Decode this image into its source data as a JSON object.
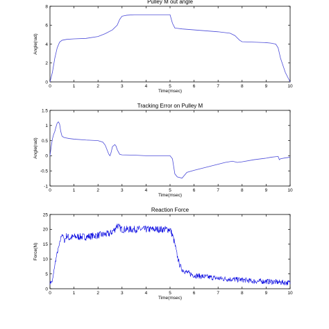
{
  "chart_data": [
    {
      "type": "line",
      "title": "Pulley M out angle",
      "xlabel": "Time(msec)",
      "ylabel": "Angle(rad)",
      "xlim": [
        0,
        10
      ],
      "ylim": [
        0,
        8
      ],
      "xticks": [
        "0",
        "1",
        "2",
        "3",
        "4",
        "5",
        "6",
        "7",
        "8",
        "9",
        "10"
      ],
      "yticks": [
        "0",
        "2",
        "4",
        "6",
        "8"
      ],
      "grid": false,
      "series": [
        {
          "color": "#4a4ad8",
          "x": [
            0,
            0.1,
            0.2,
            0.3,
            0.4,
            0.5,
            0.7,
            1.0,
            1.5,
            2.0,
            2.3,
            2.6,
            2.8,
            2.9,
            3.0,
            3.1,
            3.2,
            3.5,
            4.0,
            4.5,
            5.0,
            5.1,
            5.2,
            5.5,
            6.0,
            6.5,
            7.0,
            7.5,
            7.7,
            7.9,
            8.0,
            8.5,
            9.0,
            9.2,
            9.4,
            9.5,
            9.6,
            9.8,
            10.0
          ],
          "y": [
            0,
            1.0,
            2.5,
            3.6,
            4.2,
            4.4,
            4.5,
            4.55,
            4.6,
            4.8,
            5.1,
            5.5,
            6.0,
            6.6,
            6.95,
            7.0,
            7.05,
            7.1,
            7.1,
            7.1,
            7.1,
            6.2,
            5.7,
            5.6,
            5.5,
            5.4,
            5.3,
            5.15,
            4.9,
            4.4,
            4.25,
            4.2,
            4.15,
            4.1,
            4.0,
            3.6,
            2.5,
            1.0,
            0
          ]
        }
      ]
    },
    {
      "type": "line",
      "title": "Tracking Error on Pulley M",
      "xlabel": "Time(msec)",
      "ylabel": "Angle(rad)",
      "xlim": [
        0,
        10
      ],
      "ylim": [
        -1,
        1.5
      ],
      "xticks": [
        "0",
        "1",
        "2",
        "3",
        "4",
        "5",
        "6",
        "7",
        "8",
        "9",
        "10"
      ],
      "yticks": [
        "-1",
        "-0.5",
        "0",
        "0.5",
        "1",
        "1.5"
      ],
      "grid": false,
      "series": [
        {
          "color": "#4a4ad8",
          "x": [
            0,
            0.05,
            0.1,
            0.15,
            0.2,
            0.25,
            0.3,
            0.35,
            0.4,
            0.45,
            0.5,
            0.55,
            0.6,
            0.8,
            1.0,
            1.5,
            2.0,
            2.2,
            2.3,
            2.4,
            2.45,
            2.5,
            2.55,
            2.6,
            2.7,
            2.75,
            2.8,
            2.9,
            3.0,
            3.5,
            4.0,
            4.5,
            5.0,
            5.1,
            5.15,
            5.2,
            5.3,
            5.5,
            5.7,
            6.0,
            6.5,
            7.0,
            7.3,
            7.6,
            7.8,
            8.0,
            8.5,
            9.0,
            9.2,
            9.4,
            9.5,
            9.55,
            9.6,
            9.8,
            10.0
          ],
          "y": [
            0.0,
            0.3,
            0.55,
            0.7,
            0.8,
            0.95,
            1.08,
            1.12,
            1.05,
            0.8,
            0.65,
            0.62,
            0.6,
            0.57,
            0.55,
            0.52,
            0.5,
            0.45,
            0.35,
            0.15,
            0.05,
            0.0,
            0.12,
            0.3,
            0.37,
            0.32,
            0.2,
            0.05,
            0.03,
            0.02,
            0.0,
            0.0,
            0.0,
            -0.1,
            -0.35,
            -0.6,
            -0.7,
            -0.74,
            -0.55,
            -0.48,
            -0.38,
            -0.28,
            -0.22,
            -0.18,
            -0.22,
            -0.2,
            -0.13,
            -0.08,
            -0.05,
            -0.03,
            -0.02,
            -0.13,
            -0.1,
            -0.07,
            -0.05
          ]
        }
      ]
    },
    {
      "type": "line",
      "title": "Reaction Force",
      "xlabel": "Time(msec)",
      "ylabel": "Force(N)",
      "xlim": [
        0,
        10
      ],
      "ylim": [
        0,
        25
      ],
      "xticks": [
        "0",
        "1",
        "2",
        "3",
        "4",
        "5",
        "6",
        "7",
        "8",
        "9",
        "10"
      ],
      "yticks": [
        "0",
        "5",
        "10",
        "15",
        "20",
        "25"
      ],
      "grid": false,
      "noisy": true,
      "series": [
        {
          "color": "#0000e0",
          "x": [
            0,
            0.1,
            0.15,
            0.2,
            0.3,
            0.4,
            0.45,
            0.5,
            0.55,
            0.6,
            0.7,
            0.8,
            1.0,
            1.5,
            2.0,
            2.5,
            2.7,
            2.8,
            2.9,
            3.0,
            3.5,
            4.0,
            4.5,
            5.0,
            5.1,
            5.2,
            5.3,
            5.4,
            5.5,
            5.6,
            5.7,
            6.0,
            6.5,
            7.0,
            7.5,
            8.0,
            8.5,
            9.0,
            9.5,
            10.0
          ],
          "y": [
            2.0,
            2.5,
            5.0,
            8.0,
            12.0,
            15.0,
            17.0,
            18.5,
            17.5,
            16.0,
            18.0,
            17.0,
            17.5,
            17.5,
            18.0,
            18.5,
            20.0,
            21.5,
            20.5,
            20.0,
            20.0,
            20.0,
            20.0,
            20.0,
            18.0,
            15.0,
            11.0,
            8.0,
            6.5,
            6.0,
            5.5,
            4.5,
            4.0,
            3.5,
            3.2,
            3.0,
            2.5,
            2.5,
            2.2,
            2.0
          ]
        }
      ]
    }
  ]
}
